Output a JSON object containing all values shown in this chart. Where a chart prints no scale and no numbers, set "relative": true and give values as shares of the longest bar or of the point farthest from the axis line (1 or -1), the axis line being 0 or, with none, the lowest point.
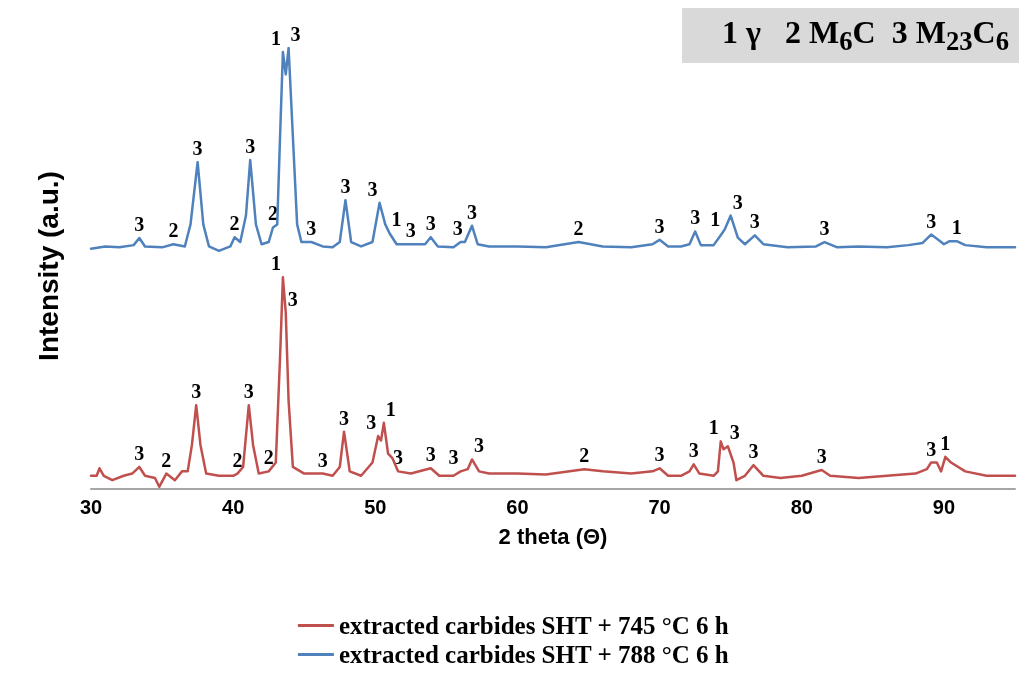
{
  "chart_data": {
    "type": "line",
    "relative": true,
    "xlabel": "2 theta (Θ)",
    "ylabel": "Intensity (a.u.)",
    "xlim": [
      30,
      95
    ],
    "xticks": [
      30,
      40,
      50,
      60,
      70,
      80,
      90
    ],
    "grid": false,
    "legend": "bottom",
    "marker": "none",
    "line_style": "solid",
    "tick_labels": "x",
    "series": [
      {
        "name": "extracted carbides SHT + 745 °C 6 h",
        "color": "#c0504d",
        "x": [
          30,
          30.4,
          30.6,
          30.9,
          31.5,
          32.3,
          32.9,
          33.4,
          33.8,
          34.5,
          34.8,
          35.3,
          35.9,
          36.4,
          36.8,
          37.1,
          37.4,
          37.7,
          38.1,
          39,
          40,
          40.3,
          40.7,
          41.1,
          41.4,
          41.8,
          42.5,
          43.0,
          43.3,
          43.5,
          43.7,
          43.9,
          44.2,
          45,
          46.3,
          47,
          47.5,
          47.8,
          48.2,
          49,
          49.8,
          50.2,
          50.4,
          50.6,
          50.9,
          51.2,
          51.6,
          52.5,
          53.9,
          54.5,
          55.5,
          56.0,
          56.5,
          56.8,
          57.3,
          58,
          60,
          62,
          64.7,
          66,
          68,
          69.5,
          70.0,
          70.6,
          71.5,
          72.1,
          72.4,
          72.8,
          73.8,
          74.1,
          74.3,
          74.5,
          74.8,
          75.2,
          75.4,
          76,
          76.6,
          77.3,
          78.5,
          80,
          81.4,
          82,
          84,
          86,
          88,
          88.8,
          89.1,
          89.5,
          89.8,
          90.1,
          90.5,
          91.5,
          93,
          95
        ],
        "values": [
          0.03,
          0.03,
          0.047,
          0.03,
          0.02,
          0.03,
          0.035,
          0.05,
          0.03,
          0.025,
          0.005,
          0.035,
          0.02,
          0.04,
          0.04,
          0.1,
          0.19,
          0.1,
          0.035,
          0.03,
          0.03,
          0.035,
          0.05,
          0.19,
          0.1,
          0.035,
          0.04,
          0.06,
          0.3,
          0.48,
          0.4,
          0.2,
          0.05,
          0.035,
          0.035,
          0.03,
          0.05,
          0.13,
          0.04,
          0.03,
          0.06,
          0.12,
          0.11,
          0.15,
          0.08,
          0.07,
          0.04,
          0.035,
          0.047,
          0.03,
          0.03,
          0.04,
          0.045,
          0.067,
          0.04,
          0.035,
          0.035,
          0.033,
          0.045,
          0.04,
          0.035,
          0.04,
          0.047,
          0.03,
          0.03,
          0.04,
          0.056,
          0.035,
          0.03,
          0.04,
          0.108,
          0.09,
          0.097,
          0.06,
          0.02,
          0.03,
          0.054,
          0.03,
          0.025,
          0.03,
          0.043,
          0.03,
          0.025,
          0.03,
          0.035,
          0.045,
          0.06,
          0.06,
          0.04,
          0.073,
          0.06,
          0.04,
          0.03,
          0.03
        ]
      },
      {
        "name": "extracted carbides SHT + 788 °C 6 h",
        "color": "#4f81bd",
        "x": [
          30,
          31,
          32,
          33,
          33.4,
          33.8,
          35,
          35.8,
          36.6,
          37.0,
          37.5,
          37.9,
          38.3,
          39,
          39.8,
          40.1,
          40.5,
          40.9,
          41.2,
          41.6,
          42,
          42.5,
          42.8,
          43.1,
          43.3,
          43.5,
          43.7,
          43.9,
          44.2,
          44.5,
          44.8,
          45.5,
          46.3,
          47,
          47.5,
          47.9,
          48.3,
          49,
          49.8,
          50.3,
          50.7,
          51.0,
          51.5,
          52.5,
          53.5,
          53.9,
          54.4,
          55.5,
          56.0,
          56.3,
          56.8,
          57.2,
          58,
          60,
          62,
          64.3,
          66,
          68,
          69.5,
          70.0,
          70.6,
          71.5,
          72.1,
          72.5,
          72.9,
          73.8,
          74.4,
          74.6,
          75.0,
          75.5,
          76,
          76.7,
          77.3,
          79,
          81,
          81.6,
          82.5,
          84,
          86,
          87.5,
          88.5,
          89.1,
          89.6,
          90,
          90.4,
          90.9,
          91.5,
          93,
          95
        ],
        "values": [
          0.545,
          0.55,
          0.548,
          0.553,
          0.569,
          0.55,
          0.548,
          0.555,
          0.55,
          0.6,
          0.741,
          0.6,
          0.55,
          0.54,
          0.55,
          0.571,
          0.56,
          0.62,
          0.746,
          0.6,
          0.555,
          0.56,
          0.593,
          0.6,
          0.8,
          0.991,
          0.94,
          1.0,
          0.8,
          0.6,
          0.56,
          0.56,
          0.55,
          0.548,
          0.56,
          0.655,
          0.56,
          0.55,
          0.56,
          0.649,
          0.6,
          0.58,
          0.555,
          0.555,
          0.555,
          0.571,
          0.55,
          0.548,
          0.56,
          0.56,
          0.597,
          0.555,
          0.55,
          0.55,
          0.548,
          0.56,
          0.55,
          0.548,
          0.555,
          0.565,
          0.55,
          0.55,
          0.555,
          0.584,
          0.553,
          0.553,
          0.58,
          0.59,
          0.62,
          0.57,
          0.555,
          0.575,
          0.555,
          0.548,
          0.55,
          0.56,
          0.548,
          0.55,
          0.548,
          0.553,
          0.558,
          0.577,
          0.565,
          0.555,
          0.562,
          0.562,
          0.553,
          0.548,
          0.548
        ]
      }
    ],
    "annotations": [
      "1 γ   2 M$_{6}$C  3 M$_{23}$C$_{6}$",
      {
        "text": "3",
        "x": 33.4,
        "y": 0.569
      },
      {
        "text": "2",
        "x": 35.8,
        "y": 0.555
      },
      {
        "text": "3",
        "x": 37.5,
        "y": 0.741
      },
      {
        "text": "2",
        "x": 40.1,
        "y": 0.571
      },
      {
        "text": "3",
        "x": 41.2,
        "y": 0.746
      },
      {
        "text": "2",
        "x": 42.8,
        "y": 0.593
      },
      {
        "text": "1",
        "x": 43.5,
        "y": 0.991
      },
      {
        "text": "3",
        "x": 43.9,
        "y": 1.0
      },
      {
        "text": "3",
        "x": 45.5,
        "y": 0.56
      },
      {
        "text": "3",
        "x": 47.9,
        "y": 0.655
      },
      {
        "text": "3",
        "x": 50.3,
        "y": 0.649
      },
      {
        "text": "1",
        "x": 51.0,
        "y": 0.58
      },
      {
        "text": "3",
        "x": 52.5,
        "y": 0.555
      },
      {
        "text": "3",
        "x": 53.9,
        "y": 0.571
      },
      {
        "text": "3",
        "x": 55.8,
        "y": 0.56
      },
      {
        "text": "3",
        "x": 56.8,
        "y": 0.597
      },
      {
        "text": "2",
        "x": 64.3,
        "y": 0.56
      },
      {
        "text": "3",
        "x": 70.0,
        "y": 0.565
      },
      {
        "text": "3",
        "x": 72.5,
        "y": 0.584
      },
      {
        "text": "1",
        "x": 74.4,
        "y": 0.58
      },
      {
        "text": "3",
        "x": 75.0,
        "y": 0.62
      },
      {
        "text": "3",
        "x": 76.7,
        "y": 0.575
      },
      {
        "text": "3",
        "x": 81.6,
        "y": 0.56
      },
      {
        "text": "3",
        "x": 89.1,
        "y": 0.577
      },
      {
        "text": "1",
        "x": 90.9,
        "y": 0.562
      },
      {
        "text": "3",
        "x": 33.4,
        "y": 0.05
      },
      {
        "text": "2",
        "x": 35.3,
        "y": 0.035
      },
      {
        "text": "3",
        "x": 37.4,
        "y": 0.19
      },
      {
        "text": "2",
        "x": 40.3,
        "y": 0.035
      },
      {
        "text": "3",
        "x": 41.1,
        "y": 0.19
      },
      {
        "text": "2",
        "x": 42.5,
        "y": 0.04
      },
      {
        "text": "1",
        "x": 43.5,
        "y": 0.48
      },
      {
        "text": "3",
        "x": 43.7,
        "y": 0.4
      },
      {
        "text": "3",
        "x": 46.3,
        "y": 0.035
      },
      {
        "text": "3",
        "x": 47.8,
        "y": 0.13
      },
      {
        "text": "3",
        "x": 50.2,
        "y": 0.12
      },
      {
        "text": "1",
        "x": 50.6,
        "y": 0.15
      },
      {
        "text": "3",
        "x": 51.6,
        "y": 0.04
      },
      {
        "text": "3",
        "x": 53.9,
        "y": 0.047
      },
      {
        "text": "3",
        "x": 56.0,
        "y": 0.04
      },
      {
        "text": "3",
        "x": 56.8,
        "y": 0.067
      },
      {
        "text": "2",
        "x": 64.7,
        "y": 0.045
      },
      {
        "text": "3",
        "x": 70.0,
        "y": 0.047
      },
      {
        "text": "3",
        "x": 72.4,
        "y": 0.056
      },
      {
        "text": "1",
        "x": 74.3,
        "y": 0.108
      },
      {
        "text": "3",
        "x": 74.8,
        "y": 0.097
      },
      {
        "text": "3",
        "x": 76.6,
        "y": 0.054
      },
      {
        "text": "3",
        "x": 81.4,
        "y": 0.043
      },
      {
        "text": "3",
        "x": 89.1,
        "y": 0.06
      },
      {
        "text": "1",
        "x": 90.1,
        "y": 0.073
      }
    ]
  }
}
